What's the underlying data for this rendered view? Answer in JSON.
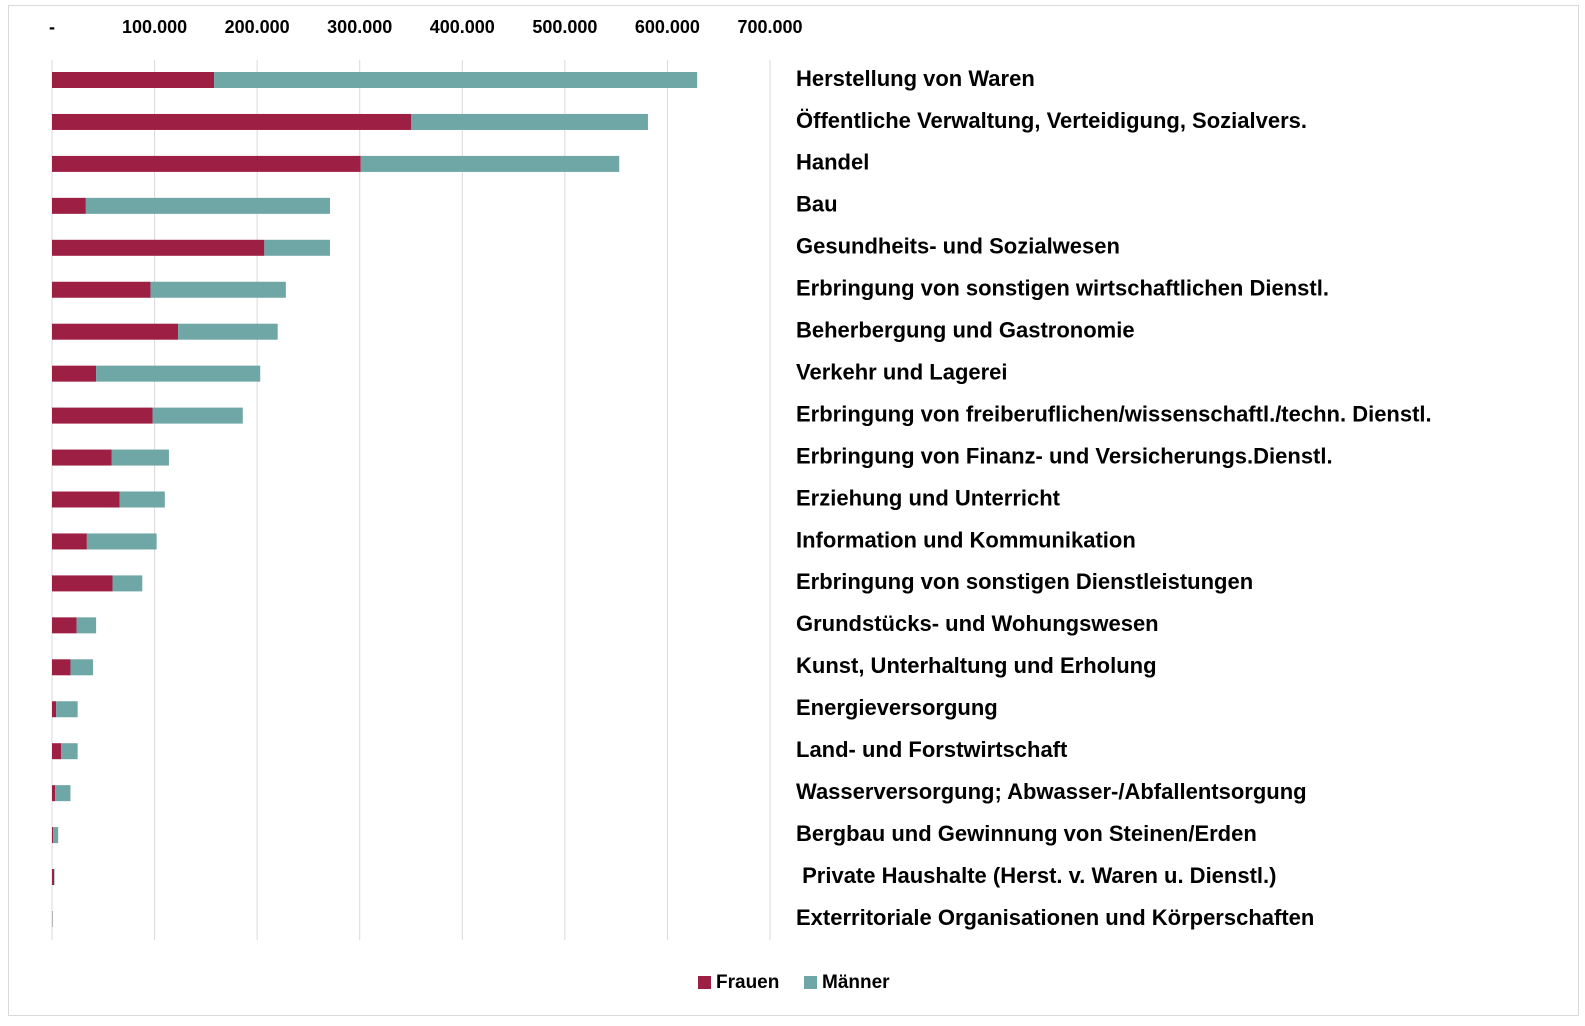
{
  "chart_data": {
    "type": "stacked-barh",
    "categories": [
      "Herstellung von Waren",
      "Öffentliche Verwaltung, Verteidigung, Sozialvers.",
      "Handel",
      "Bau",
      "Gesundheits- und Sozialwesen",
      "Erbringung von sonstigen wirtschaftlichen Dienstl.",
      "Beherbergung und Gastronomie",
      "Verkehr und Lagerei",
      "Erbringung von freiberuflichen/wissenschaftl./techn. Dienstl.",
      "Erbringung von Finanz- und Versicherungs.Dienstl.",
      "Erziehung und Unterricht",
      "Information und Kommunikation",
      "Erbringung von sonstigen Dienstleistungen",
      "Grundstücks- und Wohungswesen",
      "Kunst, Unterhaltung und Erholung",
      "Energieversorgung",
      "Land- und Forstwirtschaft",
      "Wasserversorgung; Abwasser-/Abfallentsorgung",
      "Bergbau und Gewinnung von Steinen/Erden",
      " Private Haushalte (Herst. v. Waren u. Dienstl.)",
      "Exterritoriale Organisationen und Körperschaften"
    ],
    "series": [
      {
        "name": "Frauen",
        "color": "#9e1f44",
        "values": [
          158000,
          350000,
          301000,
          33000,
          207000,
          96000,
          123000,
          43000,
          98000,
          58000,
          66000,
          34000,
          59000,
          24000,
          18000,
          4000,
          9000,
          3000,
          1000,
          2000,
          300
        ]
      },
      {
        "name": "Männer",
        "color": "#6fa6a6",
        "values": [
          471000,
          231000,
          252000,
          238000,
          64000,
          132000,
          97000,
          160000,
          88000,
          56000,
          44000,
          68000,
          29000,
          19000,
          22000,
          21000,
          16000,
          15000,
          5000,
          500,
          300
        ]
      }
    ],
    "xlim": [
      0,
      700000
    ],
    "xticks": [
      {
        "value": 0,
        "label": "-"
      },
      {
        "value": 100000,
        "label": "100.000"
      },
      {
        "value": 200000,
        "label": "200.000"
      },
      {
        "value": 300000,
        "label": "300.000"
      },
      {
        "value": 400000,
        "label": "400.000"
      },
      {
        "value": 500000,
        "label": "500.000"
      },
      {
        "value": 600000,
        "label": "600.000"
      },
      {
        "value": 700000,
        "label": "700.000"
      }
    ],
    "grid": true,
    "legend": "bottom"
  }
}
